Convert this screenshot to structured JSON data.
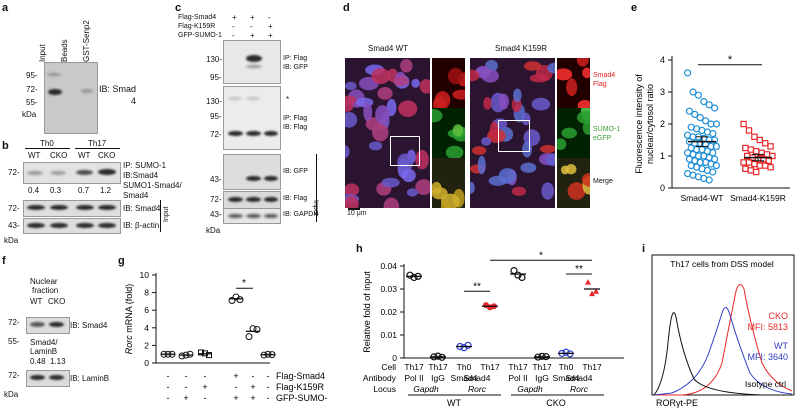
{
  "panels": {
    "a": "a",
    "b": "b",
    "c": "c",
    "d": "d",
    "e": "e",
    "f": "f",
    "g": "g",
    "h": "h",
    "i": "i"
  },
  "a": {
    "lanes": [
      "Input",
      "Beads",
      "GST-Senp2"
    ],
    "mw": [
      "95-",
      "72-",
      "55-"
    ],
    "kda": "kDa",
    "ib_l1": "IB: Smad",
    "ib_l2": "4"
  },
  "b": {
    "groups": [
      "Th0",
      "Th17"
    ],
    "lanes": [
      "WT",
      "CKO",
      "WT",
      "CKO"
    ],
    "ip1": "IP: SUMO-1",
    "ip2": "IB:Smad4",
    "ratios": [
      "0.4",
      "0.3",
      "0.7",
      "1.2"
    ],
    "ratio_l1": "SUMO1-Smad4/",
    "ratio_l2": "Smad4",
    "ib_smad4": "IB: Smad4",
    "ib_actin": "IB: β-actin",
    "input": "Input",
    "mw72": "72-",
    "mw43": "43-",
    "kda": "kDa"
  },
  "c": {
    "rows": [
      {
        "label": "Flag-Smad4",
        "vals": [
          "+",
          "+",
          "-"
        ]
      },
      {
        "label": "Flag-K159R",
        "vals": [
          "-",
          "-",
          "+"
        ]
      },
      {
        "label": "GFP-SUMO-1",
        "vals": [
          "-",
          "+",
          "+"
        ]
      }
    ],
    "p1a": "IP: Flag",
    "p1b": "IB: GFP",
    "p2a": "IP: Flag",
    "p2b": "IB: Flag",
    "p3": "IB: GFP",
    "p4": "IB: Flag",
    "p5": "IB: GAPDH",
    "mw1a": "130-",
    "mw1b": "95-",
    "mw2a": "130-",
    "mw2b": "95-",
    "mw2c": "72-",
    "mw3": "43-",
    "mw4": "72-",
    "mw5": "43-",
    "star": "*",
    "input": "Input",
    "kda": "kDa"
  },
  "d": {
    "title_wt": "Smad4 WT",
    "title_mut": "Smad4 K159R",
    "leg1a": "Smad4",
    "leg1b": "Flag",
    "leg2a": "SUMO-1",
    "leg2b": "eGFP",
    "leg3": "Merge",
    "scale": "10 μm"
  },
  "e": {
    "ylabel": "Fluorescence intensity of",
    "ylabel2": "nuclear/cytosol ratio",
    "star": "*"
  },
  "f": {
    "title1": "Nuclear",
    "title2": "fraction",
    "lanes": [
      "WT",
      "CKO"
    ],
    "ib_smad4": "IB: Smad4",
    "ratio_label": "Smad4/",
    "ratio_label2": "LaminB",
    "ratios": [
      "0.48",
      "1.13"
    ],
    "ib_laminb": "IB: LaminB",
    "mw1": "72-",
    "mw2": "55-",
    "mw3": "72-",
    "kda": "kDa"
  },
  "g": {
    "ylabel_i": "Rorc",
    "ylabel_r": " mRNA (fold)",
    "rows": [
      {
        "label": "Flag-Smad4",
        "vals": [
          "-",
          "-",
          "-",
          "+",
          "-",
          "-"
        ]
      },
      {
        "label": "Flag-K159R",
        "vals": [
          "-",
          "-",
          "+",
          "-",
          "+",
          "-"
        ]
      },
      {
        "label": "GFP-SUMO-1",
        "vals": [
          "-",
          "+",
          "-",
          "+",
          "+",
          "-"
        ]
      }
    ],
    "star": "*"
  },
  "h": {
    "ylabel": "Relative fold of input",
    "row_cell": "Cell",
    "row_ab": "Antibody",
    "row_locus": "Locus",
    "cells": [
      "Th17",
      "Th17",
      "Th0",
      "Th17",
      "Th17",
      "Th17",
      "Th0",
      "Th17"
    ],
    "abs": [
      "Pol II",
      "IgG",
      "Smad4",
      "",
      "Pol II",
      "IgG",
      "Smad4",
      ""
    ],
    "loci": [
      "Gapdh",
      "Rorc",
      "Gapdh",
      "Rorc"
    ],
    "groups": [
      "WT",
      "CKO"
    ],
    "stars": [
      "**",
      "*",
      "**"
    ]
  },
  "i": {
    "title": "Th17 cells from DSS model",
    "cko": "CKO",
    "cko_mfi": "MFI: 5813",
    "wt": "WT",
    "wt_mfi": "MFI: 3640",
    "iso": "Isotype ctrl",
    "xlabel": "RORγt-PE"
  },
  "chart_data": [
    {
      "type": "scatter",
      "panel": "e",
      "categories": [
        "Smad4-WT",
        "Smad4-K159R"
      ],
      "ylim": [
        0,
        4
      ],
      "yticks": [
        0,
        1,
        2,
        3,
        4
      ],
      "means": [
        1.45,
        0.95
      ],
      "sem": [
        0.15,
        0.1
      ],
      "series": [
        {
          "name": "Smad4-WT",
          "color": "#1f8fd6",
          "values": [
            3.6,
            3.0,
            2.9,
            2.7,
            2.6,
            2.5,
            2.4,
            2.3,
            2.2,
            2.1,
            2.0,
            2.0,
            1.9,
            1.85,
            1.8,
            1.75,
            1.7,
            1.65,
            1.6,
            1.6,
            1.55,
            1.5,
            1.5,
            1.45,
            1.4,
            1.4,
            1.35,
            1.3,
            1.3,
            1.25,
            1.2,
            1.2,
            1.15,
            1.1,
            1.1,
            1.05,
            1.0,
            1.0,
            0.95,
            0.9,
            0.9,
            0.85,
            0.8,
            0.8,
            0.75,
            0.7,
            0.7,
            0.65,
            0.6,
            0.55,
            0.5,
            0.45,
            0.4,
            0.35,
            0.3,
            0.25
          ]
        },
        {
          "name": "Smad4-K159R",
          "color": "#e8282b",
          "values": [
            2.0,
            1.8,
            1.6,
            1.5,
            1.4,
            1.3,
            1.25,
            1.2,
            1.15,
            1.1,
            1.05,
            1.0,
            1.0,
            0.95,
            0.9,
            0.9,
            0.85,
            0.8,
            0.8,
            0.75,
            0.7,
            0.7,
            0.65,
            0.6,
            0.55,
            0.5
          ]
        }
      ]
    },
    {
      "type": "scatter",
      "panel": "g",
      "ylim": [
        0,
        10
      ],
      "yticks": [
        0,
        2,
        4,
        6,
        8,
        10
      ],
      "means": [
        1,
        0.9,
        1.05,
        7.3,
        3.6,
        0.95
      ],
      "points": [
        [
          1.0,
          1.0,
          1.0
        ],
        [
          0.8,
          0.9,
          1.0
        ],
        [
          1.2,
          1.1,
          0.9
        ],
        [
          7.1,
          7.5,
          7.2
        ],
        [
          3.0,
          3.9,
          3.8
        ],
        [
          0.9,
          1.0,
          0.95
        ]
      ]
    },
    {
      "type": "scatter",
      "panel": "h",
      "ylim": [
        0,
        0.04
      ],
      "yticks": [
        0,
        0.01,
        0.02,
        0.03,
        0.04
      ],
      "means": [
        0.0355,
        0.0005,
        0.005,
        0.0225,
        0.0365,
        0.0005,
        0.002,
        0.03
      ],
      "points": [
        [
          0.036,
          0.035,
          0.0355
        ],
        [
          0.0005,
          0.0008,
          0.0003
        ],
        [
          0.005,
          0.0045,
          0.0055
        ],
        [
          0.023,
          0.022,
          0.0225
        ],
        [
          0.038,
          0.036,
          0.035
        ],
        [
          0.0004,
          0.0007,
          0.0006
        ],
        [
          0.002,
          0.0025,
          0.0018
        ],
        [
          0.033,
          0.028,
          0.029
        ]
      ],
      "colors": [
        "#111111",
        "#111111",
        "#2f3ec4",
        "#e8282b",
        "#111111",
        "#111111",
        "#2f3ec4",
        "#e8282b"
      ]
    },
    {
      "type": "line",
      "panel": "i",
      "series": [
        {
          "name": "CKO",
          "color": "#e8282b"
        },
        {
          "name": "WT",
          "color": "#2f3ec4"
        },
        {
          "name": "Isotype ctrl",
          "color": "#111111"
        }
      ]
    }
  ]
}
